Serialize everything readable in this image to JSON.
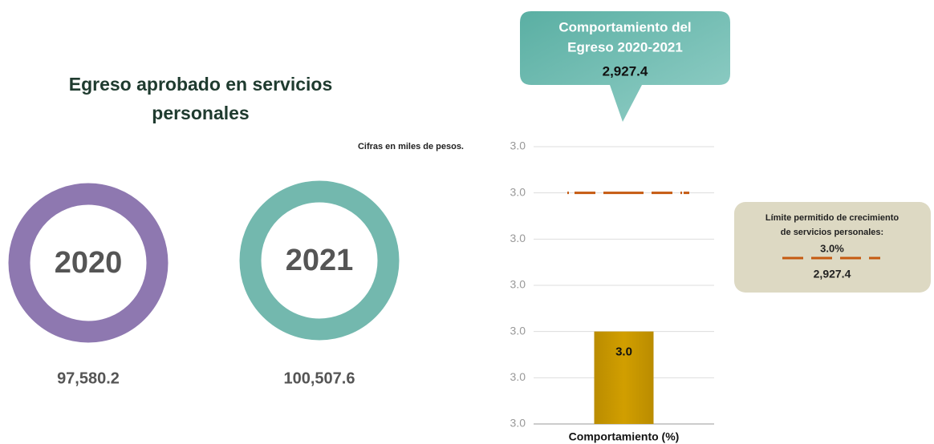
{
  "heading": {
    "title_lines": [
      "Egreso aprobado en servicios",
      "personales"
    ],
    "note": "Cifras en miles de pesos."
  },
  "rings": [
    {
      "year": "2020",
      "amount": "97,580.2",
      "color": "#8e78b0"
    },
    {
      "year": "2021",
      "amount": "100,507.6",
      "color": "#73b8ae"
    }
  ],
  "callout": {
    "title_lines": [
      "Comportamiento del",
      "Egreso 2020-2021"
    ],
    "value": "2,927.4"
  },
  "limit_box": {
    "text_lines": [
      "Límite permitido de crecimiento",
      "de servicios personales:"
    ],
    "amount": "2,927.4"
  },
  "chart_data": {
    "type": "bar",
    "categories": [
      "Comportamiento (%)"
    ],
    "values": [
      2.99
    ],
    "value_labels": [
      "3.0"
    ],
    "color": "#cc9a00",
    "ylim": [
      2.97,
      3.03
    ],
    "yticks": [
      {
        "value": 2.97,
        "label": "3.0"
      },
      {
        "value": 2.98,
        "label": "3.0"
      },
      {
        "value": 2.99,
        "label": "3.0"
      },
      {
        "value": 3.0,
        "label": "3.0"
      },
      {
        "value": 3.01,
        "label": "3.0"
      },
      {
        "value": 3.02,
        "label": "3.0"
      },
      {
        "value": 3.03,
        "label": "3.0"
      }
    ],
    "grid": true,
    "reference_line": {
      "value": 3.02,
      "label": "3.0%",
      "color": "#c55a11"
    }
  }
}
